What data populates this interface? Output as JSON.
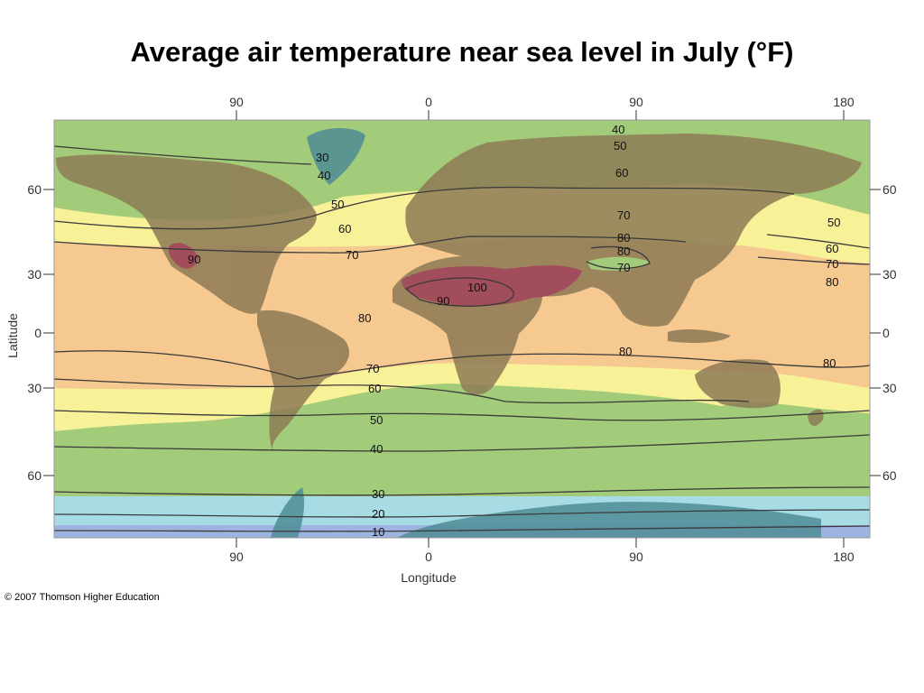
{
  "title": "Average air temperature near sea level in July (°F)",
  "credit": "© 2007 Thomson Higher Education",
  "axes": {
    "x_label": "Longitude",
    "y_label": "Latitude",
    "x_ticks": [
      "90",
      "0",
      "90",
      "180"
    ],
    "y_ticks": [
      "60",
      "30",
      "0",
      "30",
      "60"
    ]
  },
  "isotherm_labels": [
    {
      "id": "t30-greenland",
      "text": "30"
    },
    {
      "id": "t40-greenland",
      "text": "40"
    },
    {
      "id": "t50-atl-n",
      "text": "50"
    },
    {
      "id": "t60-atl-n",
      "text": "60"
    },
    {
      "id": "t70-atl-n",
      "text": "70"
    },
    {
      "id": "t90-na",
      "text": "90"
    },
    {
      "id": "t80-atl",
      "text": "80"
    },
    {
      "id": "t70-atl-s",
      "text": "70"
    },
    {
      "id": "t60-atl-s",
      "text": "60"
    },
    {
      "id": "t50-atl-s",
      "text": "50"
    },
    {
      "id": "t40-atl-s",
      "text": "40"
    },
    {
      "id": "t30-south",
      "text": "30"
    },
    {
      "id": "t20-south",
      "text": "20"
    },
    {
      "id": "t10-south",
      "text": "10"
    },
    {
      "id": "t40-arctic",
      "text": "40"
    },
    {
      "id": "t50-eurasia",
      "text": "50"
    },
    {
      "id": "t60-eurasia",
      "text": "60"
    },
    {
      "id": "t70-eurasia",
      "text": "70"
    },
    {
      "id": "t80-asia-a",
      "text": "80"
    },
    {
      "id": "t80-asia-b",
      "text": "80"
    },
    {
      "id": "t70-asia",
      "text": "70"
    },
    {
      "id": "t100-sahara",
      "text": "100"
    },
    {
      "id": "t90-sahara",
      "text": "90"
    },
    {
      "id": "t80-indian",
      "text": "80"
    },
    {
      "id": "t50-pac-n",
      "text": "50"
    },
    {
      "id": "t60-pac-n",
      "text": "60"
    },
    {
      "id": "t70-pac-n",
      "text": "70"
    },
    {
      "id": "t80-pac-n",
      "text": "80"
    },
    {
      "id": "t80-pac-s",
      "text": "80"
    }
  ],
  "legend_colors": {
    "below_10": "#9db4e0",
    "10_30": "#a8dce4",
    "30_60": "#a3cc7a",
    "60_70": "#f7f198",
    "70_90": "#f5c98f",
    "land_tint": "#8d7a55",
    "hot_90_plus": "#a24d5c",
    "cold_ice": "#4f8c96"
  }
}
